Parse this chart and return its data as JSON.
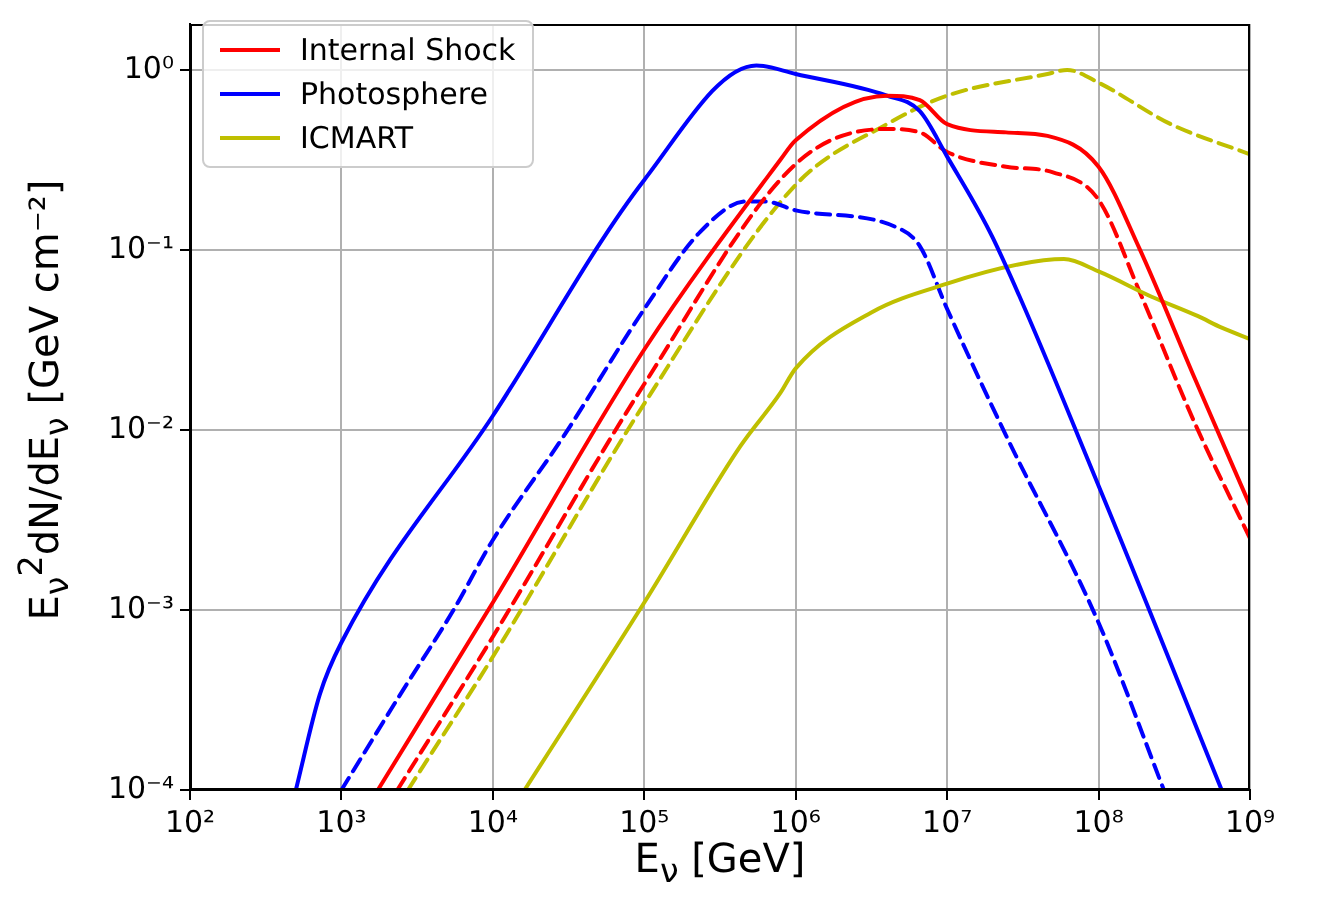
{
  "chart_data": {
    "type": "line",
    "xlabel": "E$_{ν}$ [GeV]",
    "ylabel": "E$_{ν}$$^{2}$dN/dE$_{ν}$ [GeV cm⁻²]",
    "log": "xy",
    "grid": true,
    "legend": "top left",
    "line_style": "solid",
    "marker": "none",
    "xlim": [
      100,
      1000000000.0
    ],
    "ylim": [
      0.0001,
      1.8
    ],
    "xticks": [
      {
        "value": 100,
        "label": "10²"
      },
      {
        "value": 1000,
        "label": "10³"
      },
      {
        "value": 10000.0,
        "label": "10⁴"
      },
      {
        "value": 100000.0,
        "label": "10⁵"
      },
      {
        "value": 1000000.0,
        "label": "10⁶"
      },
      {
        "value": 10000000.0,
        "label": "10⁷"
      },
      {
        "value": 100000000.0,
        "label": "10⁸"
      },
      {
        "value": 1000000000.0,
        "label": "10⁹"
      }
    ],
    "yticks": [
      {
        "value": 0.0001,
        "label": "10⁻⁴"
      },
      {
        "value": 0.001,
        "label": "10⁻³"
      },
      {
        "value": 0.01,
        "label": "10⁻²"
      },
      {
        "value": 0.1,
        "label": "10⁻¹"
      },
      {
        "value": 1,
        "label": "10⁰"
      }
    ],
    "series": [
      {
        "name": "Internal Shock",
        "color": "#ff0000",
        "x": [
          1740.0,
          10000.0,
          100000.0,
          790000.0,
          1000000.0,
          4000000.0,
          6600000.0,
          10000000.0,
          24500000.0,
          46000000.0,
          100000000.0,
          186000000.0,
          430000000.0,
          1000000000.0
        ],
        "values": [
          0.0001,
          0.0011,
          0.028,
          0.316,
          0.407,
          0.72,
          0.68,
          0.5,
          0.45,
          0.43,
          0.29,
          0.102,
          0.0195,
          0.0038
        ]
      },
      {
        "name": "Photosphere",
        "color": "#0000ff",
        "x": [
          500.0,
          720.0,
          1000.0,
          10000.0,
          100000.0,
          550000.0,
          1000000.0,
          4000000.0,
          6600000.0,
          10000000.0,
          20000000.0,
          100000000.0,
          650000000.0
        ],
        "values": [
          0.0001,
          0.00034,
          0.00066,
          0.012,
          0.245,
          1.06,
          0.95,
          0.72,
          0.59,
          0.33,
          0.117,
          0.0049,
          0.0001
        ]
      },
      {
        "name": "ICMART",
        "color": "#bfbf00",
        "x": [
          16200.0,
          100000.0,
          430000.0,
          790000.0,
          1000000.0,
          3160000.0,
          10000000.0,
          29500000.0,
          59000000.0,
          100000000.0,
          224000000.0,
          450000000.0,
          650000000.0,
          1000000000.0
        ],
        "values": [
          0.0001,
          0.0011,
          0.0081,
          0.016,
          0.022,
          0.045,
          0.065,
          0.083,
          0.089,
          0.076,
          0.055,
          0.043,
          0.037,
          0.032
        ]
      },
      {
        "color": "#ff0000",
        "line_style": "dashed",
        "x": [
          2340.0,
          10000.0,
          100000.0,
          1000000.0,
          4000000.0,
          6600000.0,
          10000000.0,
          24500000.0,
          50000000.0,
          100000000.0,
          186000000.0,
          430000000.0,
          1000000000.0
        ],
        "values": [
          0.0001,
          0.00071,
          0.018,
          0.3,
          0.47,
          0.45,
          0.35,
          0.29,
          0.27,
          0.19,
          0.059,
          0.011,
          0.0025
        ]
      },
      {
        "color": "#0000ff",
        "line_style": "dashed",
        "x": [
          1000.0,
          2450.0,
          5500.0,
          10000.0,
          29500.0,
          100000.0,
          234000.0,
          470000.0,
          630000.0,
          1000000.0,
          4500000.0,
          6600000.0,
          10000000.0,
          24500000.0,
          100000000.0,
          270000000.0
        ],
        "values": [
          0.0001,
          0.00034,
          0.001,
          0.00245,
          0.0093,
          0.047,
          0.126,
          0.186,
          0.186,
          0.166,
          0.135,
          0.105,
          0.047,
          0.0093,
          0.00085,
          0.0001
        ]
      },
      {
        "color": "#bfbf00",
        "line_style": "dashed",
        "x": [
          2750.0,
          10000.0,
          100000.0,
          1000000.0,
          4000000.0,
          10000000.0,
          46000000.0,
          62000000.0,
          100000000.0,
          300000000.0,
          1000000000.0
        ],
        "values": [
          0.0001,
          0.00055,
          0.014,
          0.23,
          0.5,
          0.72,
          0.95,
          1.0,
          0.85,
          0.5,
          0.34
        ]
      }
    ]
  }
}
